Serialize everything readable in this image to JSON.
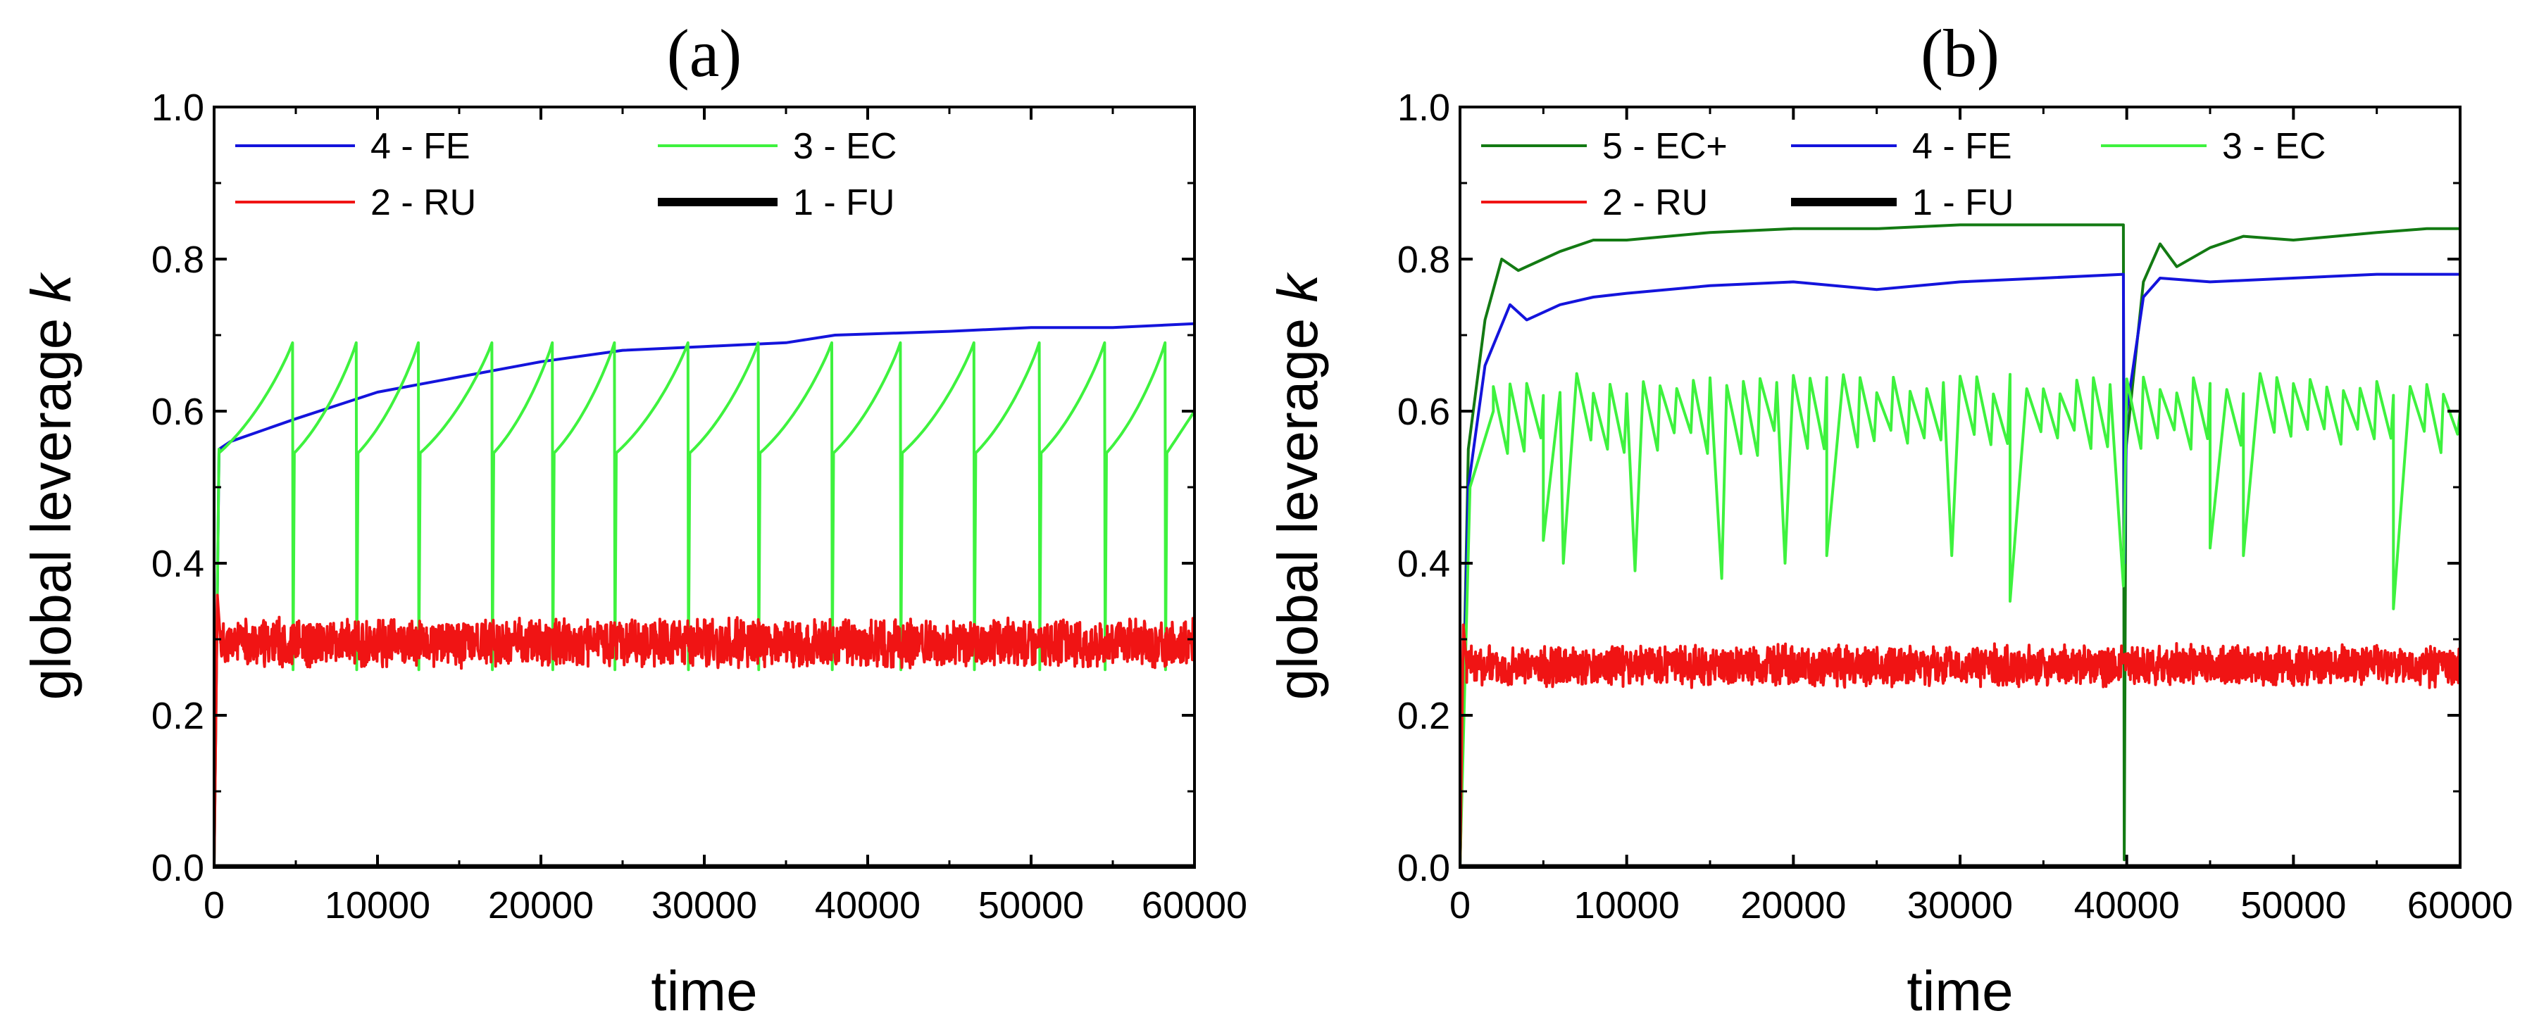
{
  "chart_data": [
    {
      "type": "line",
      "panel_label": "(a)",
      "xlabel": "time",
      "ylabel_main": "global leverage ",
      "ylabel_var": "k",
      "xlim": [
        0,
        60000
      ],
      "ylim": [
        0,
        1.0
      ],
      "x_ticks": [
        0,
        10000,
        20000,
        30000,
        40000,
        50000,
        60000
      ],
      "y_ticks": [
        "0.0",
        "0.2",
        "0.4",
        "0.6",
        "0.8",
        "1.0"
      ],
      "legend": [
        {
          "label": "4 - FE",
          "color": "#1414dc",
          "width": "thin"
        },
        {
          "label": "3 - EC",
          "color": "#3ef23e",
          "width": "thin"
        },
        {
          "label": "2 - RU",
          "color": "#f01414",
          "width": "thin"
        },
        {
          "label": "1 - FU",
          "color": "#000000",
          "width": "thick"
        }
      ],
      "series": [
        {
          "name": "4 - FE",
          "color": "#1414dc",
          "kind": "growth",
          "points": [
            [
              0,
              0
            ],
            [
              300,
              0.55
            ],
            [
              1000,
              0.56
            ],
            [
              5000,
              0.59
            ],
            [
              10000,
              0.625
            ],
            [
              15000,
              0.645
            ],
            [
              20000,
              0.665
            ],
            [
              25000,
              0.68
            ],
            [
              30000,
              0.685
            ],
            [
              35000,
              0.69
            ],
            [
              38000,
              0.7
            ],
            [
              45000,
              0.705
            ],
            [
              50000,
              0.71
            ],
            [
              55000,
              0.71
            ],
            [
              60000,
              0.715
            ]
          ]
        },
        {
          "name": "3 - EC",
          "color": "#3ef23e",
          "kind": "sawtooth",
          "start": [
            [
              0,
              0
            ],
            [
              300,
              0.55
            ]
          ],
          "low": 0.545,
          "high": 0.69,
          "drop_to": 0.26,
          "end_value": 0.6,
          "resets": [
            4800,
            8700,
            12500,
            17000,
            20700,
            24500,
            29000,
            33300,
            37800,
            42000,
            46500,
            50500,
            54500,
            58200
          ]
        },
        {
          "name": "2 - RU",
          "color": "#f01414",
          "kind": "noise",
          "rise_end": 400,
          "mean": 0.295,
          "amp": 0.035,
          "seed": 11
        },
        {
          "name": "1 - FU",
          "color": "#000000",
          "kind": "flat",
          "value": 0.0
        }
      ]
    },
    {
      "type": "line",
      "panel_label": "(b)",
      "xlabel": "time",
      "ylabel_main": "global leverage ",
      "ylabel_var": "k",
      "xlim": [
        0,
        60000
      ],
      "ylim": [
        0,
        1.0
      ],
      "x_ticks": [
        0,
        10000,
        20000,
        30000,
        40000,
        50000,
        60000
      ],
      "y_ticks": [
        "0.0",
        "0.2",
        "0.4",
        "0.6",
        "0.8",
        "1.0"
      ],
      "legend": [
        {
          "label": "5 - EC+",
          "color": "#137a13",
          "width": "thin"
        },
        {
          "label": "4 - FE",
          "color": "#1414dc",
          "width": "thin"
        },
        {
          "label": "3 - EC",
          "color": "#3ef23e",
          "width": "thin"
        },
        {
          "label": "2 - RU",
          "color": "#f01414",
          "width": "thin"
        },
        {
          "label": "1 - FU",
          "color": "#000000",
          "width": "thick"
        }
      ],
      "series": [
        {
          "name": "5 - EC+",
          "color": "#137a13",
          "kind": "growth",
          "points": [
            [
              0,
              0
            ],
            [
              500,
              0.55
            ],
            [
              1500,
              0.72
            ],
            [
              2500,
              0.8
            ],
            [
              3500,
              0.785
            ],
            [
              5000,
              0.8
            ],
            [
              6000,
              0.81
            ],
            [
              8000,
              0.825
            ],
            [
              10000,
              0.825
            ],
            [
              15000,
              0.835
            ],
            [
              20000,
              0.84
            ],
            [
              25000,
              0.84
            ],
            [
              30000,
              0.845
            ],
            [
              35000,
              0.845
            ],
            [
              39800,
              0.845
            ],
            [
              39850,
              0.01
            ],
            [
              39950,
              0.55
            ],
            [
              41000,
              0.77
            ],
            [
              42000,
              0.82
            ],
            [
              43000,
              0.79
            ],
            [
              45000,
              0.815
            ],
            [
              47000,
              0.83
            ],
            [
              50000,
              0.825
            ],
            [
              55000,
              0.835
            ],
            [
              58000,
              0.84
            ],
            [
              60000,
              0.84
            ]
          ]
        },
        {
          "name": "4 - FE",
          "color": "#1414dc",
          "kind": "growth",
          "points": [
            [
              0,
              0
            ],
            [
              500,
              0.5
            ],
            [
              1500,
              0.66
            ],
            [
              3000,
              0.74
            ],
            [
              4000,
              0.72
            ],
            [
              6000,
              0.74
            ],
            [
              8000,
              0.75
            ],
            [
              10000,
              0.755
            ],
            [
              15000,
              0.765
            ],
            [
              20000,
              0.77
            ],
            [
              25000,
              0.76
            ],
            [
              30000,
              0.77
            ],
            [
              35000,
              0.775
            ],
            [
              39800,
              0.78
            ],
            [
              39850,
              0.4
            ],
            [
              40000,
              0.6
            ],
            [
              41000,
              0.75
            ],
            [
              42000,
              0.775
            ],
            [
              45000,
              0.77
            ],
            [
              50000,
              0.775
            ],
            [
              55000,
              0.78
            ],
            [
              60000,
              0.78
            ]
          ]
        },
        {
          "name": "3 - EC",
          "color": "#3ef23e",
          "kind": "oscillate",
          "start": [
            [
              0,
              0
            ],
            [
              600,
              0.5
            ],
            [
              2000,
              0.6
            ]
          ],
          "from_x": 2000,
          "mean": 0.6,
          "amp": 0.05,
          "step": 1000,
          "seed": 5,
          "dips": [
            [
              5000,
              0.43
            ],
            [
              6200,
              0.4
            ],
            [
              10500,
              0.39
            ],
            [
              15700,
              0.38
            ],
            [
              19500,
              0.4
            ],
            [
              22000,
              0.41
            ],
            [
              29500,
              0.41
            ],
            [
              33000,
              0.35
            ],
            [
              39800,
              0.37
            ],
            [
              45000,
              0.42
            ],
            [
              47000,
              0.41
            ],
            [
              56000,
              0.34
            ]
          ]
        },
        {
          "name": "2 - RU",
          "color": "#f01414",
          "kind": "noise",
          "rise_end": 400,
          "mean": 0.265,
          "amp": 0.03,
          "seed": 23
        },
        {
          "name": "1 - FU",
          "color": "#000000",
          "kind": "flat",
          "value": 0.0
        }
      ]
    }
  ]
}
